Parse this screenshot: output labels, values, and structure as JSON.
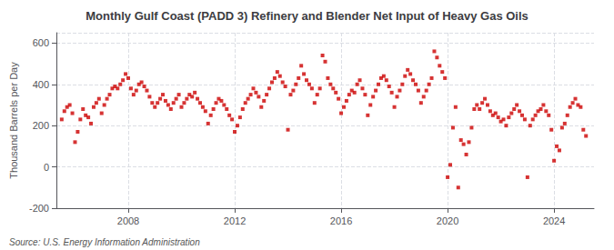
{
  "chart_data": {
    "type": "scatter",
    "title": "Monthly Gulf Coast (PADD 3) Refinery and Blender Net Input of Heavy Gas Oils",
    "ylabel": "Thousand Barrels per Day",
    "annotations": [
      "Source: U.S. Energy Information Administration"
    ],
    "color": "#cc0000",
    "marker": "square",
    "grid": true,
    "xlim": [
      2005.3,
      2025.5
    ],
    "xticks": [
      2008,
      2012,
      2016,
      2020,
      2024
    ],
    "ylim": [
      -200,
      650
    ],
    "yticks": [
      -200,
      0,
      200,
      400,
      600
    ],
    "x": [
      2005.5,
      2005.6,
      2005.7,
      2005.8,
      2005.9,
      2006.0,
      2006.1,
      2006.2,
      2006.3,
      2006.4,
      2006.5,
      2006.6,
      2006.7,
      2006.8,
      2006.9,
      2007.0,
      2007.1,
      2007.2,
      2007.3,
      2007.4,
      2007.5,
      2007.6,
      2007.7,
      2007.8,
      2007.9,
      2008.0,
      2008.1,
      2008.2,
      2008.3,
      2008.4,
      2008.5,
      2008.6,
      2008.7,
      2008.8,
      2008.9,
      2009.0,
      2009.1,
      2009.2,
      2009.3,
      2009.4,
      2009.5,
      2009.6,
      2009.7,
      2009.8,
      2009.9,
      2010.0,
      2010.1,
      2010.2,
      2010.3,
      2010.4,
      2010.5,
      2010.6,
      2010.7,
      2010.8,
      2010.9,
      2011.0,
      2011.1,
      2011.2,
      2011.3,
      2011.4,
      2011.5,
      2011.6,
      2011.7,
      2011.8,
      2011.9,
      2012.0,
      2012.1,
      2012.2,
      2012.3,
      2012.4,
      2012.5,
      2012.6,
      2012.7,
      2012.8,
      2012.9,
      2013.0,
      2013.1,
      2013.2,
      2013.3,
      2013.4,
      2013.5,
      2013.6,
      2013.7,
      2013.8,
      2013.9,
      2014.0,
      2014.1,
      2014.2,
      2014.3,
      2014.4,
      2014.5,
      2014.6,
      2014.7,
      2014.8,
      2014.9,
      2015.0,
      2015.1,
      2015.2,
      2015.3,
      2015.4,
      2015.5,
      2015.6,
      2015.7,
      2015.8,
      2015.9,
      2016.0,
      2016.1,
      2016.2,
      2016.3,
      2016.4,
      2016.5,
      2016.6,
      2016.7,
      2016.8,
      2016.9,
      2017.0,
      2017.1,
      2017.2,
      2017.3,
      2017.4,
      2017.5,
      2017.6,
      2017.7,
      2017.8,
      2017.9,
      2018.0,
      2018.1,
      2018.2,
      2018.3,
      2018.4,
      2018.5,
      2018.6,
      2018.7,
      2018.8,
      2018.9,
      2019.0,
      2019.1,
      2019.2,
      2019.3,
      2019.4,
      2019.5,
      2019.6,
      2019.7,
      2019.8,
      2019.9,
      2020.0,
      2020.1,
      2020.2,
      2020.3,
      2020.4,
      2020.5,
      2020.6,
      2020.7,
      2020.8,
      2020.9,
      2021.0,
      2021.1,
      2021.2,
      2021.3,
      2021.4,
      2021.5,
      2021.6,
      2021.7,
      2021.8,
      2021.9,
      2022.0,
      2022.1,
      2022.2,
      2022.3,
      2022.4,
      2022.5,
      2022.6,
      2022.7,
      2022.8,
      2022.9,
      2023.0,
      2023.1,
      2023.2,
      2023.3,
      2023.4,
      2023.5,
      2023.6,
      2023.7,
      2023.8,
      2023.9,
      2024.0,
      2024.1,
      2024.2,
      2024.3,
      2024.4,
      2024.5,
      2024.6,
      2024.7,
      2024.8,
      2024.9,
      2025.0,
      2025.1,
      2025.2
    ],
    "values": [
      230,
      270,
      290,
      300,
      260,
      120,
      170,
      230,
      280,
      250,
      240,
      210,
      290,
      310,
      330,
      260,
      300,
      330,
      350,
      380,
      390,
      380,
      400,
      420,
      450,
      430,
      380,
      350,
      370,
      400,
      410,
      390,
      370,
      340,
      310,
      290,
      310,
      330,
      350,
      320,
      300,
      280,
      310,
      330,
      350,
      290,
      310,
      330,
      350,
      340,
      360,
      330,
      310,
      290,
      270,
      210,
      250,
      280,
      310,
      330,
      320,
      300,
      280,
      250,
      230,
      170,
      200,
      240,
      280,
      310,
      330,
      350,
      380,
      360,
      340,
      290,
      320,
      350,
      380,
      410,
      430,
      460,
      440,
      410,
      390,
      180,
      350,
      370,
      400,
      430,
      490,
      450,
      420,
      400,
      380,
      310,
      350,
      380,
      540,
      510,
      430,
      400,
      380,
      360,
      330,
      260,
      290,
      320,
      350,
      370,
      360,
      400,
      420,
      380,
      350,
      250,
      300,
      340,
      370,
      400,
      430,
      440,
      420,
      390,
      360,
      290,
      340,
      370,
      400,
      440,
      470,
      450,
      420,
      400,
      370,
      310,
      340,
      370,
      400,
      430,
      560,
      530,
      490,
      460,
      430,
      -50,
      10,
      190,
      290,
      -100,
      130,
      110,
      60,
      120,
      190,
      280,
      300,
      280,
      310,
      330,
      300,
      270,
      250,
      260,
      240,
      220,
      230,
      200,
      240,
      260,
      280,
      300,
      270,
      250,
      230,
      -50,
      200,
      230,
      250,
      270,
      280,
      300,
      270,
      250,
      180,
      30,
      100,
      80,
      190,
      210,
      250,
      290,
      310,
      330,
      300,
      290,
      180,
      150
    ]
  }
}
